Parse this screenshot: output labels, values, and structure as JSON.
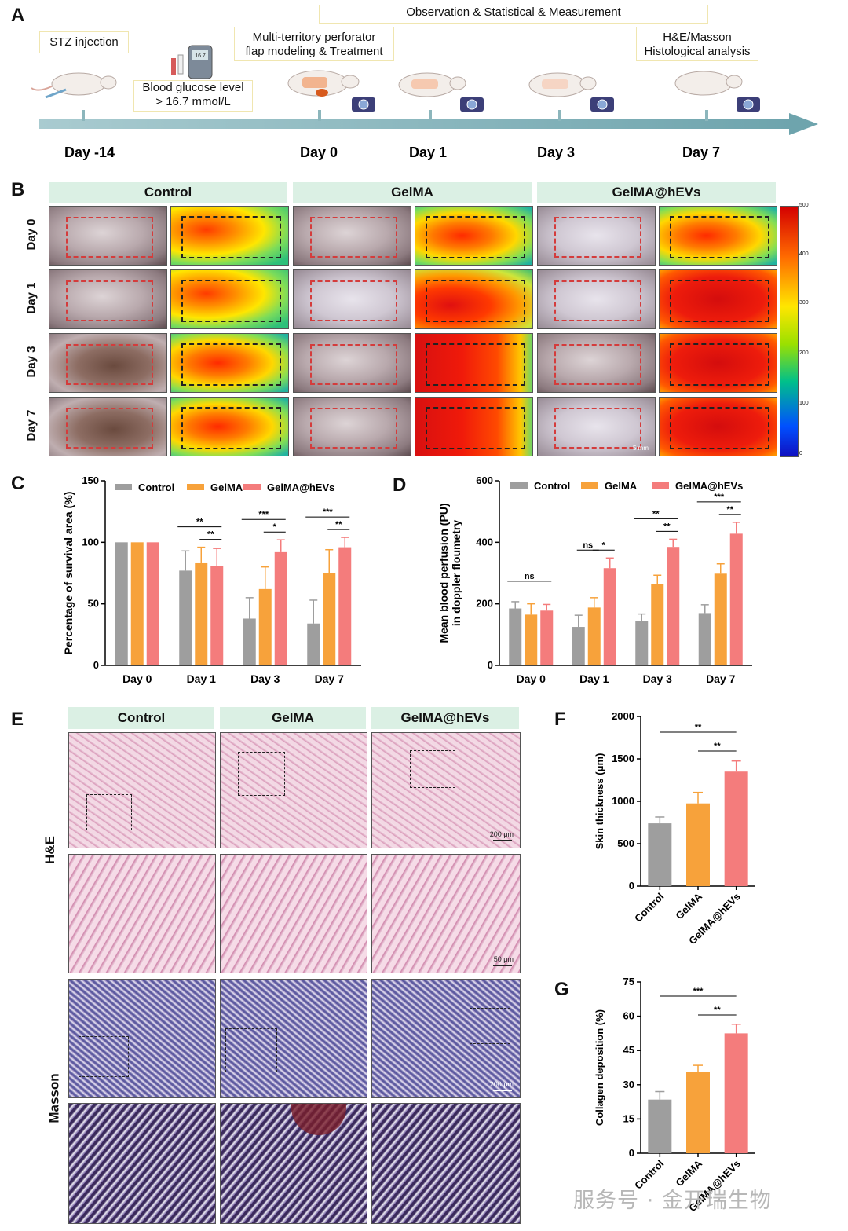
{
  "panels": {
    "a": "A",
    "b": "B",
    "c": "C",
    "d": "D",
    "e": "E",
    "f": "F",
    "g": "G"
  },
  "timeline": {
    "banner": "Observation & Statistical & Measurement",
    "stz": "STZ injection",
    "glucose_line1": "Blood glucose level",
    "glucose_line2": "> 16.7 mmol/L",
    "model_line1": "Multi-territory perforator",
    "model_line2": "flap modeling & Treatment",
    "histo_line1": "H&E/Masson",
    "histo_line2": "Histological analysis",
    "days": [
      "Day -14",
      "Day 0",
      "Day 1",
      "Day 3",
      "Day 7"
    ],
    "glucometer_text": "16.7"
  },
  "panel_b": {
    "groups": [
      "Control",
      "GelMA",
      "GelMA@hEVs"
    ],
    "days": [
      "Day 0",
      "Day 1",
      "Day 3",
      "Day 7"
    ],
    "scale": "5 mm",
    "colorbar_ticks": [
      "500",
      "400",
      "300",
      "200",
      "100",
      "0"
    ],
    "colorbar_colors": [
      "#d40000",
      "#ff6a00",
      "#ffe600",
      "#9be000",
      "#00c08a",
      "#0040ff",
      "#1010c0"
    ]
  },
  "panel_e": {
    "groups": [
      "Control",
      "GelMA",
      "GelMA@hEVs"
    ],
    "rows": [
      "H&E",
      "Masson"
    ],
    "scale": "200 μm",
    "scale_zoom": "50 μm"
  },
  "watermark": "服务号 · 金开瑞生物",
  "colors": {
    "control": "#9e9e9e",
    "gelma": "#f7a23b",
    "gelma_hevs": "#f47c7c"
  },
  "chart_data": [
    {
      "panel": "C",
      "type": "bar",
      "ylabel": "Percentage of survival area (%)",
      "ylim": [
        0,
        150
      ],
      "yticks": [
        0,
        50,
        100,
        150
      ],
      "categories": [
        "Day 0",
        "Day 1",
        "Day 3",
        "Day 7"
      ],
      "series": [
        {
          "name": "Control",
          "values": [
            100,
            77,
            38,
            34
          ],
          "errors": [
            0,
            16,
            17,
            19
          ]
        },
        {
          "name": "GelMA",
          "values": [
            100,
            83,
            62,
            75
          ],
          "errors": [
            0,
            13,
            18,
            19
          ]
        },
        {
          "name": "GelMA@hEVs",
          "values": [
            100,
            81,
            92,
            96
          ],
          "errors": [
            0,
            14,
            10,
            8
          ]
        }
      ],
      "significance": [
        {
          "category": 1,
          "from": 0,
          "to": 2,
          "label": "**"
        },
        {
          "category": 1,
          "from": 1,
          "to": 2,
          "label": "**"
        },
        {
          "category": 2,
          "from": 0,
          "to": 2,
          "label": "***"
        },
        {
          "category": 2,
          "from": 1,
          "to": 2,
          "label": "*"
        },
        {
          "category": 3,
          "from": 0,
          "to": 2,
          "label": "***"
        },
        {
          "category": 3,
          "from": 1,
          "to": 2,
          "label": "**"
        }
      ],
      "legend": "top"
    },
    {
      "panel": "D",
      "type": "bar",
      "ylabel": "Mean blood perfusion (PU)",
      "ylabel2": "in doppler floumetry",
      "ylim": [
        0,
        600
      ],
      "yticks": [
        0,
        200,
        400,
        600
      ],
      "categories": [
        "Day 0",
        "Day 1",
        "Day 3",
        "Day 7"
      ],
      "series": [
        {
          "name": "Control",
          "values": [
            185,
            125,
            145,
            170
          ],
          "errors": [
            22,
            38,
            22,
            27
          ]
        },
        {
          "name": "GelMA",
          "values": [
            165,
            188,
            265,
            298
          ],
          "errors": [
            35,
            32,
            28,
            32
          ]
        },
        {
          "name": "GelMA@hEVs",
          "values": [
            178,
            316,
            385,
            428
          ],
          "errors": [
            20,
            33,
            25,
            37
          ]
        }
      ],
      "significance": [
        {
          "category": 0,
          "from": 0,
          "to": 2,
          "label": "ns"
        },
        {
          "category": 1,
          "from": 0,
          "to": 1,
          "label": "ns"
        },
        {
          "category": 1,
          "from": 1,
          "to": 2,
          "label": "*"
        },
        {
          "category": 2,
          "from": 0,
          "to": 2,
          "label": "**"
        },
        {
          "category": 2,
          "from": 1,
          "to": 2,
          "label": "**"
        },
        {
          "category": 3,
          "from": 0,
          "to": 2,
          "label": "***"
        },
        {
          "category": 3,
          "from": 1,
          "to": 2,
          "label": "**"
        }
      ],
      "legend": "top"
    },
    {
      "panel": "F",
      "type": "bar",
      "ylabel": "Skin thickness (μm)",
      "ylim": [
        0,
        2000
      ],
      "yticks": [
        0,
        500,
        1000,
        1500,
        2000
      ],
      "categories": [
        "Control",
        "GelMA",
        "GelMA@hEVs"
      ],
      "values": [
        740,
        975,
        1350
      ],
      "errors": [
        75,
        130,
        125
      ],
      "significance": [
        {
          "from": 0,
          "to": 2,
          "label": "**"
        },
        {
          "from": 1,
          "to": 2,
          "label": "**"
        }
      ]
    },
    {
      "panel": "G",
      "type": "bar",
      "ylabel": "Collagen deposition (%)",
      "ylim": [
        0,
        75
      ],
      "yticks": [
        0,
        15,
        30,
        45,
        60,
        75
      ],
      "categories": [
        "Control",
        "GelMA",
        "GelMA@hEVs"
      ],
      "values": [
        23.5,
        35.5,
        52.5
      ],
      "errors": [
        3.5,
        3.0,
        4.0
      ],
      "significance": [
        {
          "from": 0,
          "to": 2,
          "label": "***"
        },
        {
          "from": 1,
          "to": 2,
          "label": "**"
        }
      ]
    }
  ]
}
